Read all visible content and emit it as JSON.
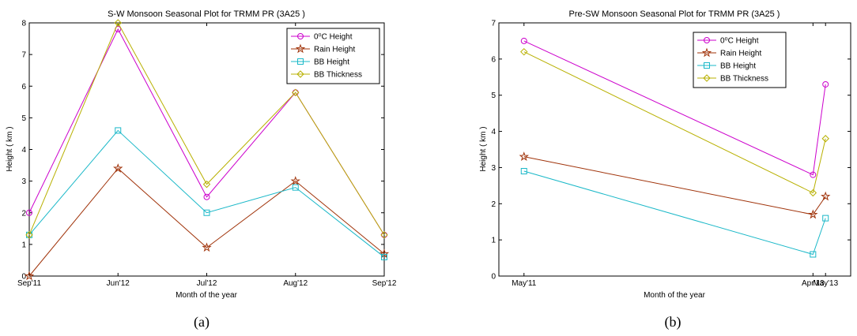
{
  "chart_data": [
    {
      "type": "line",
      "title": "S-W Monsoon Seasonal Plot for TRMM PR (3A25 )",
      "xlabel": "Month of the year",
      "ylabel": "Height ( km )",
      "categories": [
        "Sep'11",
        "Jun'12",
        "Jul'12",
        "Aug'12",
        "Sep'12"
      ],
      "x": [
        0,
        1,
        2,
        3,
        4
      ],
      "ylim": [
        0,
        8
      ],
      "yticks": [
        "0",
        "1",
        "2",
        "3",
        "4",
        "5",
        "6",
        "7",
        "8"
      ],
      "grid": false,
      "legend_position": "top-right",
      "caption": "(a)",
      "series": [
        {
          "name": "0⁰C Height",
          "color": "#cc00cc",
          "marker": "circle",
          "values": [
            2.0,
            7.8,
            2.5,
            5.8,
            1.3
          ]
        },
        {
          "name": "Rain Height",
          "color": "#a0330a",
          "marker": "star",
          "values": [
            0.0,
            3.4,
            0.9,
            3.0,
            0.7
          ]
        },
        {
          "name": "BB Height",
          "color": "#1ab8c8",
          "marker": "square",
          "values": [
            1.3,
            4.6,
            2.0,
            2.8,
            0.6
          ]
        },
        {
          "name": "BB Thickness",
          "color": "#b8b000",
          "marker": "diamond",
          "values": [
            1.3,
            8.0,
            2.9,
            5.8,
            1.3
          ]
        }
      ]
    },
    {
      "type": "line",
      "title": "Pre-SW Monsoon Seasonal Plot for TRMM PR (3A25 )",
      "xlabel": "Month of the year",
      "ylabel": "Height ( km )",
      "categories": [
        "May'11",
        "Apr'13",
        "May'13"
      ],
      "x": [
        0,
        23,
        24
      ],
      "xlim": [
        -2,
        26
      ],
      "ylim": [
        0,
        7
      ],
      "yticks": [
        "0",
        "1",
        "2",
        "3",
        "4",
        "5",
        "6",
        "7"
      ],
      "grid": false,
      "legend_position": "top-right",
      "caption": "(b)",
      "series": [
        {
          "name": "0⁰C Height",
          "color": "#cc00cc",
          "marker": "circle",
          "values": [
            6.5,
            2.8,
            5.3
          ]
        },
        {
          "name": "Rain Height",
          "color": "#a0330a",
          "marker": "star",
          "values": [
            3.3,
            1.7,
            2.2
          ]
        },
        {
          "name": "BB Height",
          "color": "#1ab8c8",
          "marker": "square",
          "values": [
            2.9,
            0.6,
            1.6
          ]
        },
        {
          "name": "BB Thickness",
          "color": "#b8b000",
          "marker": "diamond",
          "values": [
            6.2,
            2.3,
            3.8
          ]
        }
      ]
    }
  ]
}
